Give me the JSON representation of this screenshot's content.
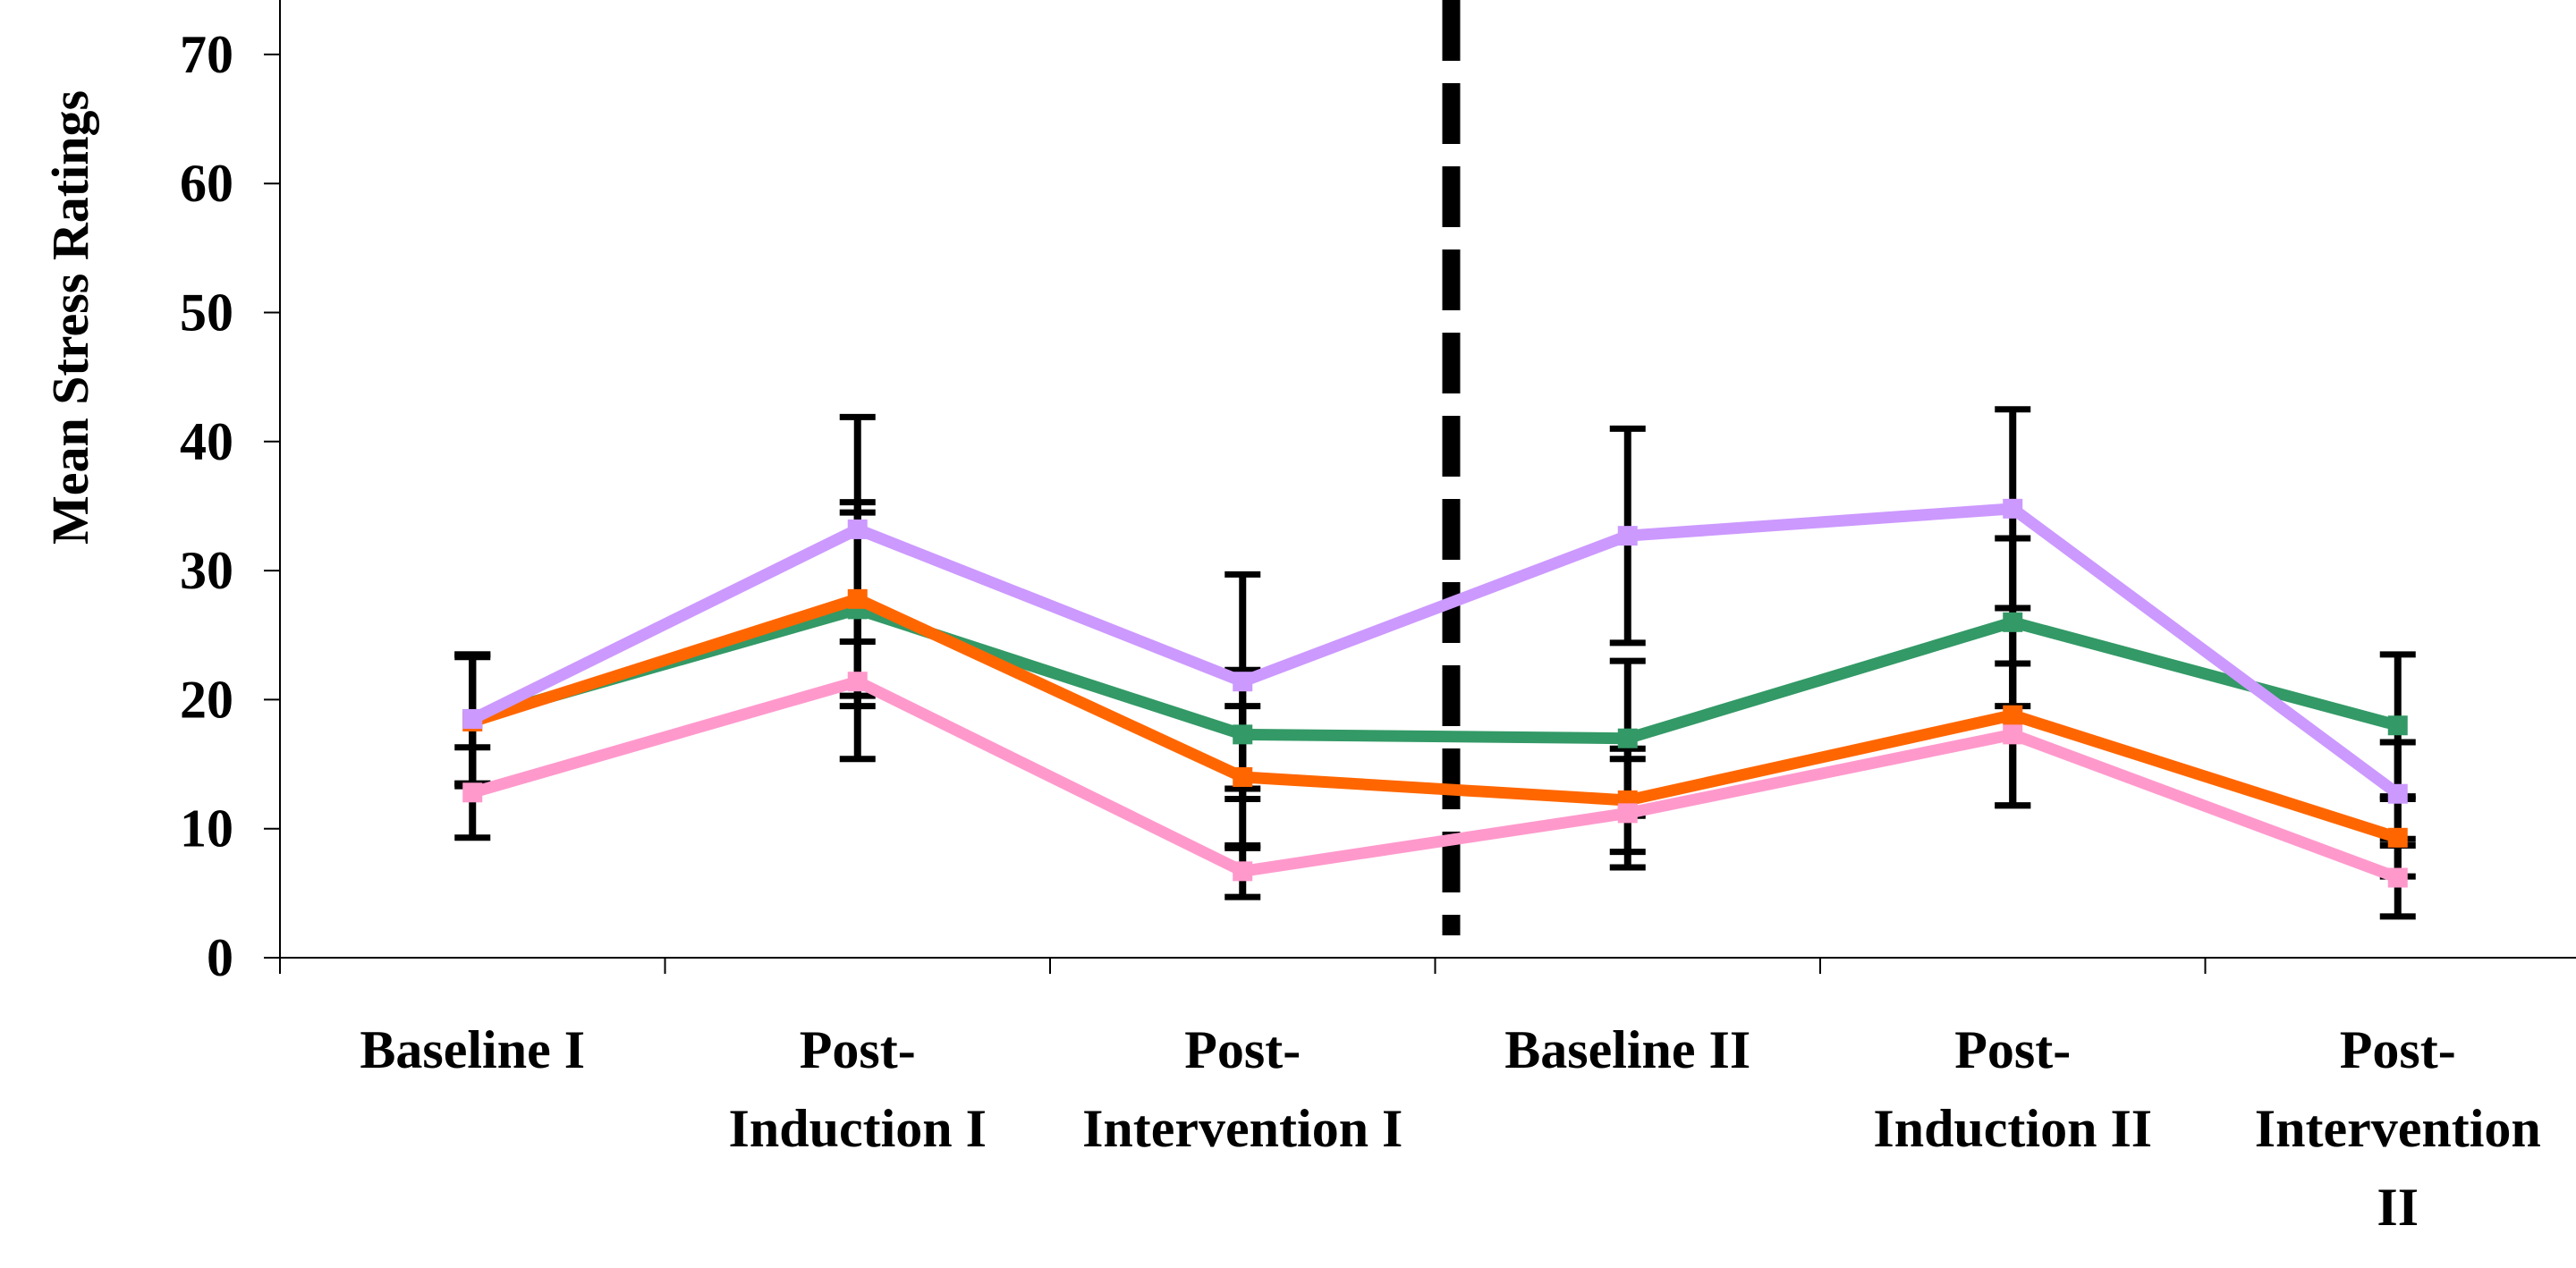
{
  "chart_data": {
    "type": "line",
    "title": "",
    "xlabel": "",
    "ylabel": "Mean Stress Ratings",
    "ylim": [
      0,
      75
    ],
    "yticks": [
      "0",
      "10",
      "20",
      "30",
      "40",
      "50",
      "60",
      "70"
    ],
    "categories": [
      [
        "Baseline I"
      ],
      [
        "Post-",
        "Induction I"
      ],
      [
        "Post-",
        "Intervention I"
      ],
      [
        "Baseline II"
      ],
      [
        "Post-",
        "Induction II"
      ],
      [
        "Post-",
        "Intervention",
        "II"
      ]
    ],
    "divider_between_categories": [
      2,
      3
    ],
    "grid": false,
    "legend": "none",
    "error_bar_color": "#000000",
    "series": [
      {
        "color": "#339966",
        "values": [
          18.5,
          27,
          17.3,
          17,
          26,
          18
        ],
        "err": [
          5,
          7.5,
          5,
          6,
          6.5,
          5.5
        ]
      },
      {
        "color": "#FF6600",
        "values": [
          18.3,
          27.8,
          14,
          12.2,
          18.8,
          9.3
        ],
        "err": [
          5,
          7.5,
          5.5,
          4,
          7,
          3
        ]
      },
      {
        "color": "#FF99CC",
        "values": [
          12.8,
          21.4,
          6.7,
          11.2,
          17.3,
          6.2
        ],
        "err": [
          3.5,
          6,
          2,
          4.2,
          5.5,
          3
        ]
      },
      {
        "color": "#CC99FF",
        "values": [
          18.5,
          33.2,
          21.4,
          32.7,
          34.8,
          12.7
        ],
        "err": [
          5,
          8.7,
          8.3,
          8.3,
          7.7,
          4
        ]
      }
    ]
  }
}
